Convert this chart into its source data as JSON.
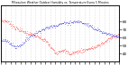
{
  "title": "Milwaukee Weather Outdoor Humidity vs. Temperature Every 5 Minutes",
  "bg_color": "#ffffff",
  "plot_bg_color": "#ffffff",
  "grid_color": "#c8c8c8",
  "temp_color": "#ff0000",
  "humid_color": "#0000cc",
  "n_points": 288,
  "right_yticks": [
    40,
    50,
    60,
    70,
    80
  ],
  "right_ylim": [
    25,
    90
  ],
  "temp_ylim": [
    25,
    90
  ],
  "humid_ylim": [
    30,
    100
  ]
}
